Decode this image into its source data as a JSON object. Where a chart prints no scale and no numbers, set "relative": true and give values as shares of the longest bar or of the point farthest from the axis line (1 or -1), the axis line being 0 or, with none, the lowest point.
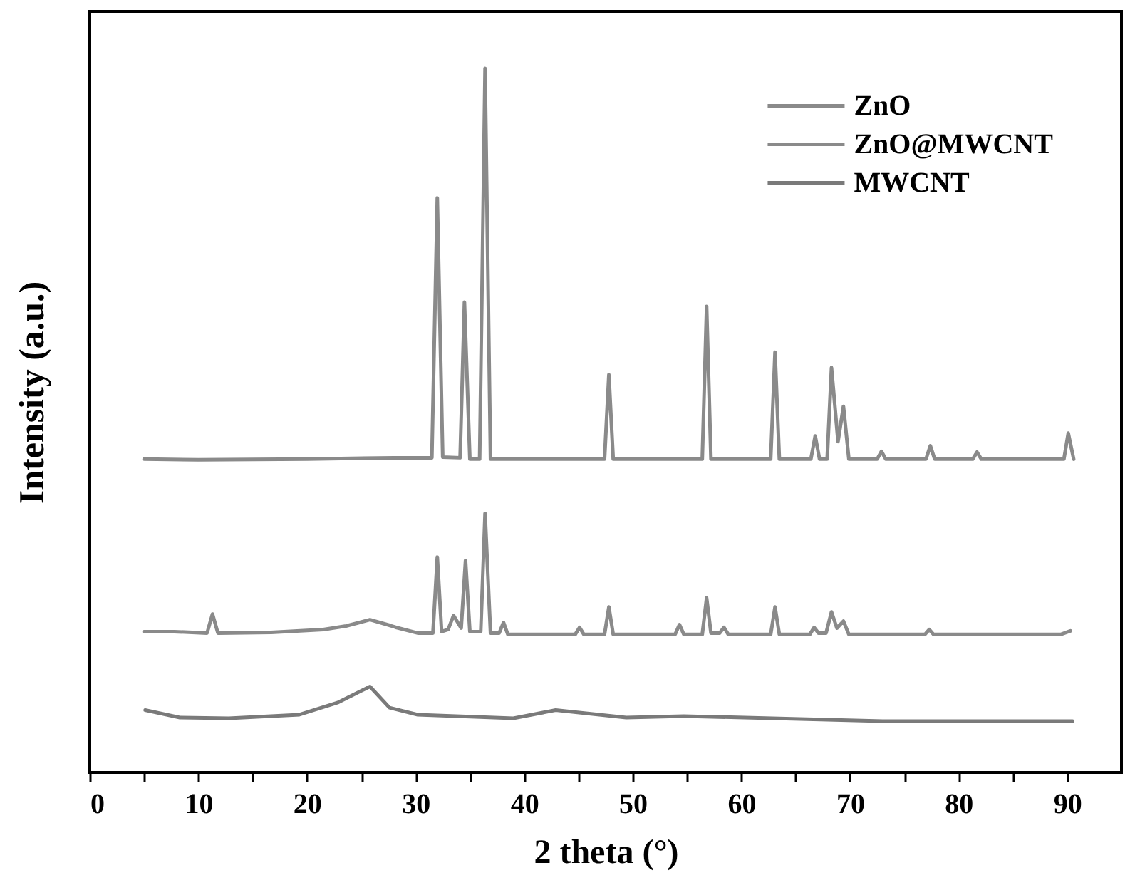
{
  "chart_data": {
    "type": "line",
    "xlabel": "2 theta (°)",
    "ylabel": "Intensity (a.u.)",
    "relative": true,
    "legend": "top right",
    "xlim": [
      0,
      95
    ],
    "xticks": [
      0,
      {
        "value": 5,
        "label": null
      },
      10,
      {
        "value": 15,
        "label": null
      },
      20,
      {
        "value": 25,
        "label": null
      },
      30,
      {
        "value": 35,
        "label": null
      },
      40,
      {
        "value": 45,
        "label": null
      },
      50,
      {
        "value": 55,
        "label": null
      },
      60,
      {
        "value": 65,
        "label": null
      },
      70,
      {
        "value": 75,
        "label": null
      },
      80,
      {
        "value": 85,
        "label": null
      },
      90
    ],
    "series": [
      {
        "name": "ZnO",
        "color": "#8a8a8a",
        "x": [
          5.0,
          10,
          20,
          28,
          31.5,
          32.0,
          32.5,
          34.1,
          34.5,
          35.0,
          35.9,
          36.4,
          36.9,
          40,
          45,
          47.4,
          47.8,
          48.2,
          52,
          56.4,
          56.8,
          57.2,
          62.7,
          63.1,
          63.5,
          66.4,
          66.8,
          67.2,
          67.9,
          68.3,
          68.9,
          69.4,
          69.9,
          72.5,
          72.9,
          73.3,
          77.0,
          77.4,
          77.8,
          81.3,
          81.7,
          82.1,
          89.7,
          90.1,
          90.6
        ],
        "values": [
          0.445,
          0.444,
          0.445,
          0.447,
          0.447,
          0.816,
          0.448,
          0.447,
          0.668,
          0.445,
          0.445,
          1.0,
          0.445,
          0.445,
          0.445,
          0.445,
          0.565,
          0.445,
          0.445,
          0.445,
          0.662,
          0.445,
          0.445,
          0.597,
          0.445,
          0.445,
          0.478,
          0.445,
          0.445,
          0.575,
          0.47,
          0.52,
          0.445,
          0.445,
          0.456,
          0.445,
          0.445,
          0.464,
          0.445,
          0.445,
          0.455,
          0.445,
          0.445,
          0.482,
          0.445
        ]
      },
      {
        "name": "ZnO@MWCNT",
        "color": "#8a8a8a",
        "x": [
          5.0,
          7.8,
          10.8,
          11.3,
          11.8,
          16.7,
          21.5,
          23.6,
          25.8,
          27.6,
          28.2,
          30.2,
          31.6,
          32.0,
          32.4,
          33.0,
          33.5,
          34.2,
          34.6,
          35.0,
          36.0,
          36.4,
          36.9,
          37.7,
          38.1,
          38.5,
          44.7,
          45.1,
          45.5,
          47.4,
          47.8,
          48.2,
          53.9,
          54.3,
          54.7,
          56.4,
          56.8,
          57.2,
          58.0,
          58.4,
          58.8,
          62.7,
          63.1,
          63.5,
          66.3,
          66.7,
          67.1,
          67.8,
          68.3,
          68.8,
          69.4,
          69.9,
          76.9,
          77.3,
          77.7,
          89.4,
          90.3
        ],
        "values": [
          0.2,
          0.2,
          0.198,
          0.225,
          0.198,
          0.199,
          0.203,
          0.208,
          0.217,
          0.209,
          0.206,
          0.198,
          0.198,
          0.306,
          0.2,
          0.203,
          0.223,
          0.205,
          0.301,
          0.2,
          0.2,
          0.368,
          0.198,
          0.198,
          0.213,
          0.196,
          0.196,
          0.206,
          0.196,
          0.196,
          0.235,
          0.196,
          0.196,
          0.21,
          0.196,
          0.196,
          0.248,
          0.198,
          0.198,
          0.206,
          0.196,
          0.196,
          0.235,
          0.196,
          0.196,
          0.206,
          0.198,
          0.198,
          0.228,
          0.205,
          0.215,
          0.196,
          0.196,
          0.203,
          0.196,
          0.196,
          0.201
        ]
      },
      {
        "name": "MWCNT",
        "color": "#7a7a7a",
        "x": [
          5.1,
          8.3,
          12.8,
          19.3,
          22.8,
          25.8,
          27.6,
          30.2,
          39.0,
          42.9,
          49.4,
          54.7,
          73.0,
          90.5
        ],
        "values": [
          0.0885,
          0.078,
          0.077,
          0.082,
          0.099,
          0.122,
          0.092,
          0.082,
          0.077,
          0.0885,
          0.078,
          0.08,
          0.073,
          0.073
        ]
      }
    ]
  }
}
